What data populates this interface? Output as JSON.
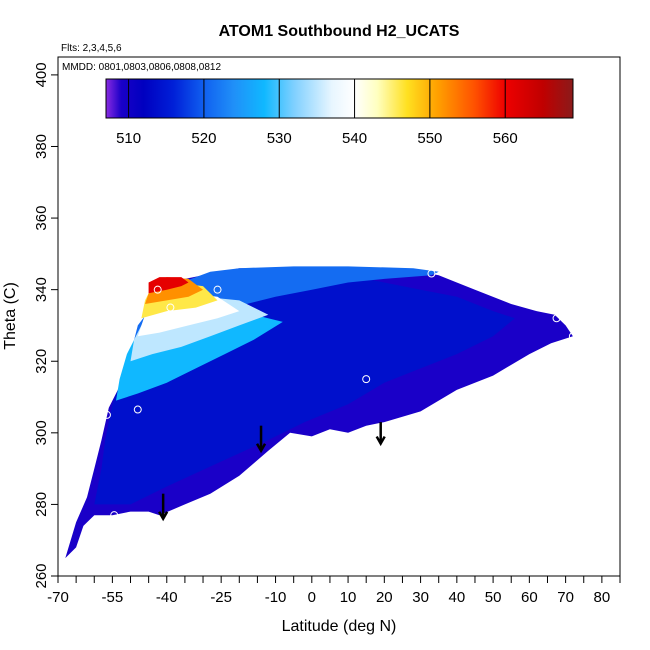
{
  "chart_data": {
    "type": "heatmap",
    "title": "ATOM1 Southbound H2_UCATS",
    "annotations": {
      "flights": "Flts: 2,3,4,5,6",
      "dates": "MMDD: 0801,0803,0806,0808,0812"
    },
    "xlabel": "Latitude (deg N)",
    "ylabel": "Theta (C)",
    "xlim": [
      -70,
      85
    ],
    "ylim": [
      260,
      405
    ],
    "x_ticks_major": [
      -70,
      -55,
      -40,
      -25,
      -10,
      0,
      10,
      20,
      30,
      40,
      50,
      60,
      70,
      80
    ],
    "x_tick_labels": [
      "-70",
      "-55",
      "-40",
      "-25",
      "-10",
      "0",
      "10",
      "20",
      "30",
      "40",
      "50",
      "60",
      "70",
      "80"
    ],
    "x_ticks_minor": [
      -65,
      -60,
      -50,
      -45,
      -35,
      -30,
      -20,
      -15,
      -5,
      5,
      15,
      25,
      35,
      45,
      55,
      65,
      75,
      85
    ],
    "y_ticks": [
      260,
      280,
      300,
      320,
      340,
      360,
      380,
      400
    ],
    "y_tick_labels": [
      "260",
      "280",
      "300",
      "320",
      "340",
      "360",
      "380",
      "400"
    ],
    "colorbar": {
      "min": 507,
      "max": 569,
      "ticks": [
        510,
        520,
        530,
        540,
        550,
        560
      ],
      "tick_labels": [
        "510",
        "520",
        "530",
        "540",
        "550",
        "560"
      ],
      "stops": [
        {
          "v": 507,
          "c": "#8a2be2"
        },
        {
          "v": 509,
          "c": "#1a00c8"
        },
        {
          "v": 512,
          "c": "#0000c0"
        },
        {
          "v": 516,
          "c": "#0020d8"
        },
        {
          "v": 520,
          "c": "#1060f0"
        },
        {
          "v": 524,
          "c": "#2090f8"
        },
        {
          "v": 528,
          "c": "#10b8ff"
        },
        {
          "v": 532,
          "c": "#80d0ff"
        },
        {
          "v": 537,
          "c": "#e8f6ff"
        },
        {
          "v": 540,
          "c": "#ffffff"
        },
        {
          "v": 543,
          "c": "#ffffc0"
        },
        {
          "v": 547,
          "c": "#ffe020"
        },
        {
          "v": 551,
          "c": "#ffa000"
        },
        {
          "v": 556,
          "c": "#ff5000"
        },
        {
          "v": 560,
          "c": "#ee0000"
        },
        {
          "v": 565,
          "c": "#c00000"
        },
        {
          "v": 569,
          "c": "#8b1a1a"
        }
      ]
    },
    "regions": [
      {
        "name": "tropospheric-base",
        "value": 509,
        "polygon": [
          [
            -68,
            265
          ],
          [
            -65,
            268
          ],
          [
            -63,
            274
          ],
          [
            -60,
            277
          ],
          [
            -55,
            277
          ],
          [
            -50,
            278
          ],
          [
            -45,
            278
          ],
          [
            -42,
            277
          ],
          [
            -35,
            280
          ],
          [
            -28,
            283
          ],
          [
            -20,
            288
          ],
          [
            -12,
            295
          ],
          [
            -6,
            300
          ],
          [
            0,
            299
          ],
          [
            5,
            301
          ],
          [
            10,
            300
          ],
          [
            15,
            302
          ],
          [
            20,
            303
          ],
          [
            30,
            306
          ],
          [
            40,
            312
          ],
          [
            50,
            316
          ],
          [
            60,
            322
          ],
          [
            66,
            325
          ],
          [
            72,
            327
          ],
          [
            70,
            330
          ],
          [
            67,
            333
          ],
          [
            62,
            334
          ],
          [
            55,
            336
          ],
          [
            45,
            340
          ],
          [
            40,
            342
          ],
          [
            35,
            344
          ],
          [
            30,
            345
          ],
          [
            20,
            346
          ],
          [
            0,
            346
          ],
          [
            -20,
            346
          ],
          [
            -30,
            344
          ],
          [
            -40,
            342
          ],
          [
            -42,
            338
          ],
          [
            -46,
            330
          ],
          [
            -50,
            322
          ],
          [
            -52,
            315
          ],
          [
            -56,
            307
          ],
          [
            -58,
            298
          ],
          [
            -60,
            290
          ],
          [
            -62,
            282
          ],
          [
            -65,
            275
          ]
        ]
      },
      {
        "name": "mid-blue-band",
        "value": 514,
        "polygon": [
          [
            -60,
            280
          ],
          [
            -50,
            280
          ],
          [
            -40,
            285
          ],
          [
            -25,
            292
          ],
          [
            -12,
            298
          ],
          [
            -2,
            303
          ],
          [
            10,
            308
          ],
          [
            20,
            314
          ],
          [
            30,
            318
          ],
          [
            40,
            322
          ],
          [
            50,
            327
          ],
          [
            56,
            332
          ],
          [
            50,
            334
          ],
          [
            40,
            338
          ],
          [
            30,
            340
          ],
          [
            20,
            342
          ],
          [
            10,
            344
          ],
          [
            0,
            345
          ],
          [
            -10,
            345
          ],
          [
            -20,
            345
          ],
          [
            -30,
            343
          ],
          [
            -38,
            340
          ],
          [
            -42,
            336
          ],
          [
            -46,
            330
          ],
          [
            -50,
            322
          ],
          [
            -52,
            316
          ],
          [
            -55,
            308
          ],
          [
            -57,
            298
          ],
          [
            -58,
            290
          ]
        ]
      },
      {
        "name": "upper-blue-wedge",
        "value": 521,
        "polygon": [
          [
            -50,
            322
          ],
          [
            -44,
            325
          ],
          [
            -36,
            328
          ],
          [
            -28,
            332
          ],
          [
            -18,
            336
          ],
          [
            -10,
            338
          ],
          [
            0,
            340
          ],
          [
            10,
            342
          ],
          [
            20,
            343
          ],
          [
            33,
            344
          ],
          [
            35,
            345
          ],
          [
            28,
            346
          ],
          [
            10,
            346.5
          ],
          [
            -5,
            346.5
          ],
          [
            -20,
            346
          ],
          [
            -28,
            345
          ],
          [
            -36,
            342
          ],
          [
            -42,
            338
          ],
          [
            -48,
            330
          ]
        ]
      },
      {
        "name": "cyan-band",
        "value": 528,
        "polygon": [
          [
            -54,
            309
          ],
          [
            -48,
            311
          ],
          [
            -40,
            314
          ],
          [
            -32,
            318
          ],
          [
            -24,
            322
          ],
          [
            -16,
            326
          ],
          [
            -8,
            331
          ],
          [
            -20,
            334
          ],
          [
            -30,
            334
          ],
          [
            -40,
            332
          ],
          [
            -48,
            328
          ],
          [
            -51,
            322
          ],
          [
            -53,
            315
          ]
        ]
      },
      {
        "name": "light-band",
        "value": 535,
        "polygon": [
          [
            -50,
            320
          ],
          [
            -44,
            322
          ],
          [
            -36,
            324
          ],
          [
            -28,
            327
          ],
          [
            -20,
            330
          ],
          [
            -12,
            333
          ],
          [
            -20,
            337
          ],
          [
            -30,
            338
          ],
          [
            -40,
            336
          ],
          [
            -46,
            332
          ],
          [
            -49,
            326
          ]
        ]
      },
      {
        "name": "white-core",
        "value": 540,
        "polygon": [
          [
            -48,
            327
          ],
          [
            -42,
            328
          ],
          [
            -34,
            330
          ],
          [
            -26,
            332
          ],
          [
            -20,
            334
          ],
          [
            -26,
            338
          ],
          [
            -34,
            339
          ],
          [
            -42,
            337
          ],
          [
            -46,
            333
          ]
        ]
      },
      {
        "name": "yellow-layer",
        "value": 546,
        "polygon": [
          [
            -47,
            332
          ],
          [
            -40,
            334
          ],
          [
            -32,
            335
          ],
          [
            -26,
            337
          ],
          [
            -30,
            341
          ],
          [
            -38,
            342
          ],
          [
            -44,
            341
          ],
          [
            -46,
            337
          ]
        ]
      },
      {
        "name": "orange-layer",
        "value": 552,
        "polygon": [
          [
            -46,
            336
          ],
          [
            -40,
            337
          ],
          [
            -34,
            338
          ],
          [
            -30,
            340
          ],
          [
            -34,
            343
          ],
          [
            -40,
            343.5
          ],
          [
            -44,
            342
          ]
        ]
      },
      {
        "name": "red-cap",
        "value": 561,
        "polygon": [
          [
            -45,
            339
          ],
          [
            -40,
            340
          ],
          [
            -36,
            341
          ],
          [
            -34,
            342
          ],
          [
            -36,
            343.5
          ],
          [
            -42,
            343.5
          ],
          [
            -45,
            342
          ]
        ]
      }
    ],
    "markers": [
      {
        "x": -56.5,
        "y": 305
      },
      {
        "x": -54.5,
        "y": 277
      },
      {
        "x": -48,
        "y": 306.5
      },
      {
        "x": -42.5,
        "y": 340
      },
      {
        "x": -39,
        "y": 335
      },
      {
        "x": -26,
        "y": 340
      },
      {
        "x": 15,
        "y": 315
      },
      {
        "x": 33,
        "y": 344.5
      },
      {
        "x": 67.5,
        "y": 332
      },
      {
        "x": 72,
        "y": 327
      }
    ],
    "arrows": [
      {
        "x": -41,
        "y_top": 283,
        "y_bottom": 276
      },
      {
        "x": -14,
        "y_top": 302,
        "y_bottom": 295
      },
      {
        "x": 19,
        "y_top": 303,
        "y_bottom": 297
      }
    ]
  }
}
